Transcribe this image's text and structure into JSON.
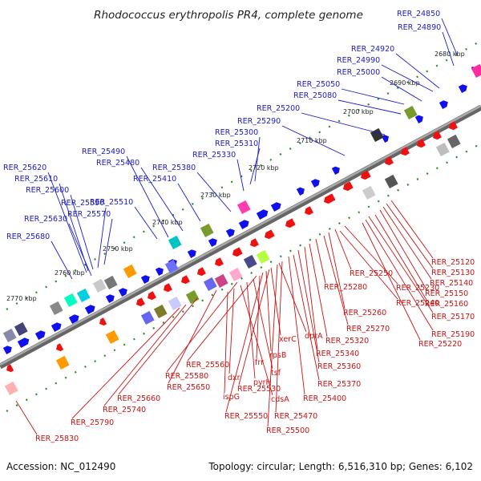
{
  "title": "Rhodococcus erythropolis PR4, complete genome",
  "footer": {
    "accession": "Accession: NC_012490",
    "summary": "Topology: circular; Length: 6,516,310 bp; Genes: 6,102"
  },
  "colors": {
    "forward_label": "#1a1acc",
    "reverse_label": "#cc1111",
    "forward_gene": "#1010ee",
    "reverse_gene": "#ee1111",
    "backbone": "#888888",
    "tick_dot": "#2a8a2a"
  },
  "ticks": [
    "2680 kbp",
    "2690 kbp",
    "2700 kbp",
    "2710 kbp",
    "2720 kbp",
    "2730 kbp",
    "2740 kbp",
    "2750 kbp",
    "2760 kbp",
    "2770 kbp"
  ],
  "forward_labels": [
    "RER_24850",
    "RER_24890",
    "RER_24920",
    "RER_24990",
    "RER_25000",
    "RER_25050",
    "RER_25080",
    "RER_25200",
    "RER_25290",
    "RER_25300",
    "RER_25310",
    "RER_25330",
    "RER_25380",
    "RER_25410",
    "RER_25480",
    "RER_25490",
    "RER_25510",
    "RER_25570",
    "RER_25590",
    "RER_25600",
    "RER_25610",
    "RER_25620",
    "RER_25630",
    "RER_25680"
  ],
  "reverse_labels": [
    "RER_25120",
    "RER_25130",
    "RER_25140",
    "RER_25150",
    "RER_25160",
    "RER_25170",
    "RER_25190",
    "RER_25220",
    "RER_25230",
    "RER_25240",
    "RER_25250",
    "RER_25260",
    "RER_25270",
    "RER_25280",
    "RER_25320",
    "RER_25340",
    "RER_25360",
    "RER_25370",
    "RER_25400",
    "RER_25470",
    "RER_25500",
    "RER_25530",
    "RER_25550",
    "RER_25560",
    "RER_25580",
    "RER_25650",
    "RER_25660",
    "RER_25740",
    "RER_25790",
    "RER_25830",
    "dprA",
    "xerC",
    "rpsB",
    "frr",
    "tsf",
    "pyrH",
    "cdsA",
    "dxr",
    "ispG"
  ]
}
